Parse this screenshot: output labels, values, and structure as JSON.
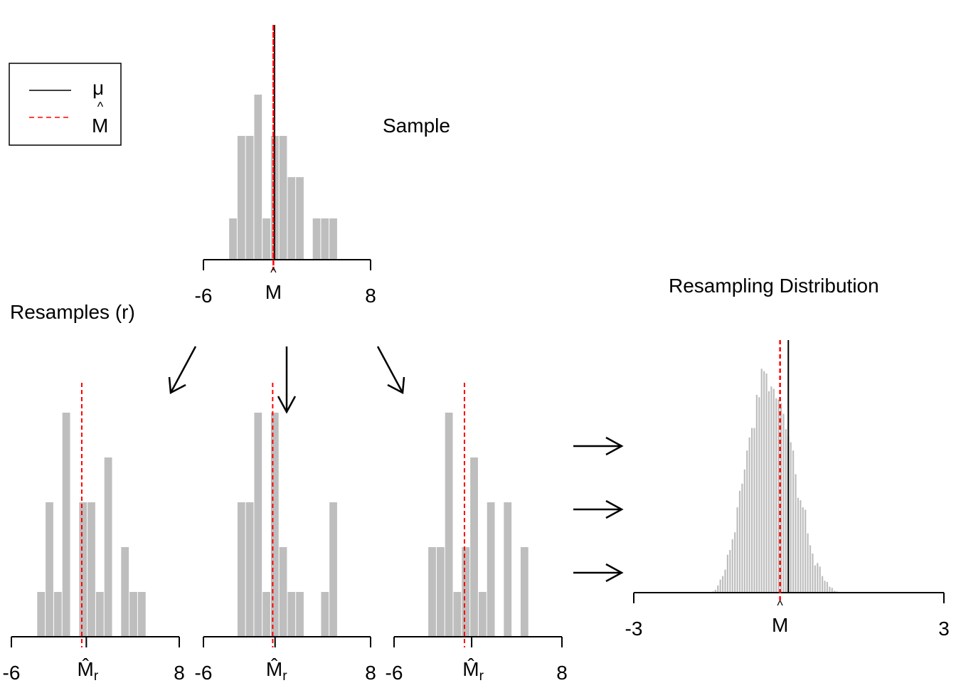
{
  "legend": {
    "items": [
      {
        "label": "μ",
        "color": "#000000",
        "style": "solid"
      },
      {
        "label": "M",
        "hat": "^",
        "color": "#FF0000",
        "style": "dashed"
      }
    ]
  },
  "labels": {
    "sample_title": "Sample",
    "resamples_title": "Resamples (r)",
    "distribution_title": "Resampling Distribution",
    "mhat": "M",
    "hat": "^",
    "sub_r": "r"
  },
  "colors": {
    "bar": "#BEBEBE",
    "mean": "#FF0000",
    "mu": "#000000",
    "axis": "#000000"
  },
  "chart_data": [
    {
      "id": "sample",
      "type": "bar",
      "title": "Sample",
      "bin_start": -3.875,
      "bin_width": 0.7,
      "counts": [
        1,
        3,
        3,
        4,
        1,
        3,
        3,
        2,
        2,
        0,
        1,
        1,
        1
      ],
      "xlim": [
        -6,
        8
      ],
      "tick_labels": [
        "-6",
        "8"
      ],
      "mean": -0.14,
      "mu": -0.05,
      "mean_label": "M̂"
    },
    {
      "id": "resample-1",
      "type": "bar",
      "bin_start": -3.875,
      "bin_width": 0.7,
      "counts": [
        1,
        3,
        1,
        5,
        0,
        3,
        3,
        1,
        4,
        0,
        2,
        1,
        1
      ],
      "xlim": [
        -6,
        8
      ],
      "tick_labels": [
        "-6",
        "8"
      ],
      "sample_mean": -0.13,
      "resample_mean": 0.25,
      "mean_label": "M̂r"
    },
    {
      "id": "resample-2",
      "type": "bar",
      "bin_start": -3.875,
      "bin_width": 0.7,
      "counts": [
        0,
        3,
        3,
        5,
        1,
        5,
        2,
        1,
        1,
        0,
        0,
        1,
        3
      ],
      "xlim": [
        -6,
        8
      ],
      "tick_labels": [
        "-6",
        "8"
      ],
      "sample_mean": -0.2,
      "resample_mean": 0.0,
      "mean_label": "M̂r"
    },
    {
      "id": "resample-3",
      "type": "bar",
      "bin_start": -3.875,
      "bin_width": 0.7,
      "counts": [
        0,
        2,
        2,
        5,
        1,
        2,
        4,
        1,
        3,
        0,
        3,
        0,
        2
      ],
      "xlim": [
        -6,
        8
      ],
      "tick_labels": [
        "-6",
        "8"
      ],
      "sample_mean": -0.13,
      "resample_mean": 0.47,
      "mean_label": "M̂r"
    },
    {
      "id": "resampling-distribution",
      "type": "bar",
      "title": "Resampling Distribution",
      "bin_start": -1.49,
      "bin_width": 0.047,
      "counts": [
        5,
        12,
        30,
        55,
        70,
        97,
        160,
        180,
        225,
        255,
        360,
        430,
        460,
        520,
        600,
        655,
        695,
        695,
        835,
        825,
        945,
        935,
        925,
        850,
        870,
        860,
        820,
        815,
        800,
        755,
        690,
        660,
        635,
        600,
        500,
        400,
        390,
        360,
        350,
        250,
        200,
        165,
        115,
        125,
        110,
        70,
        50,
        45,
        25,
        20,
        8,
        5,
        3
      ],
      "xlim": [
        -3,
        3
      ],
      "tick_labels": [
        "-3",
        "3"
      ],
      "mean": -0.17,
      "mu": -0.01,
      "mean_label": "M̂"
    }
  ]
}
